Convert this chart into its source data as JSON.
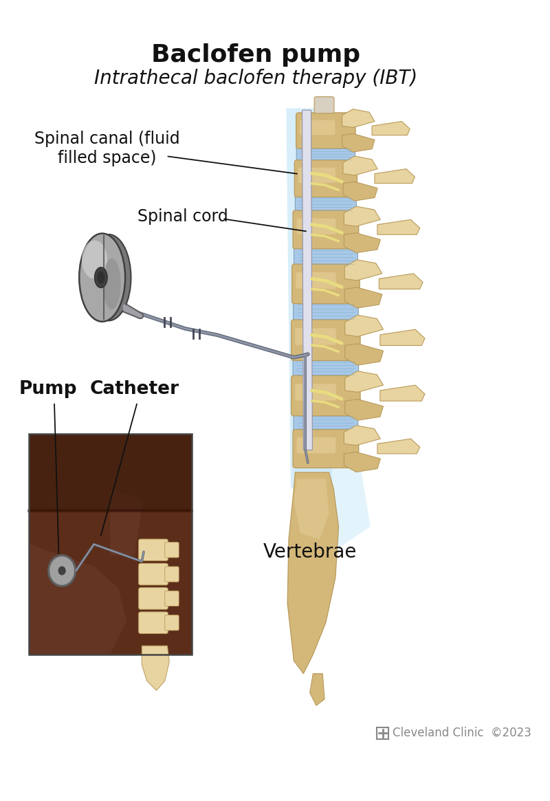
{
  "title": "Baclofen pump",
  "subtitle": "Intrathecal baclofen therapy (IBT)",
  "title_fontsize": 26,
  "subtitle_fontsize": 20,
  "title_color": "#111111",
  "subtitle_color": "#111111",
  "bg_color": "#ffffff",
  "label_fontsize": 17,
  "copyright_text": "Cleveland Clinic  ©2023",
  "copyright_color": "#888888",
  "copyright_fontsize": 12,
  "labels": {
    "spinal_canal": "Spinal canal (fluid\nfilled space)",
    "spinal_cord": "Spinal cord",
    "pump": "Pump",
    "catheter": "Catheter",
    "vertebrae": "Vertebrae"
  },
  "vertebra_color": "#D4B87A",
  "vertebra_light": "#E8D4A0",
  "vertebra_dark": "#B89A5A",
  "disc_color": "#A8C8E8",
  "disc_stripe": "#7AAAC8",
  "nerve_color": "#E8DC80",
  "nerve_dark": "#C8BC50",
  "cord_color": "#E0E0EC",
  "cord_edge": "#9090A8",
  "canal_glow": "#C8E8F8",
  "pump_mid": "#A0A0A0",
  "pump_light": "#C8C8C8",
  "pump_dark": "#606060",
  "pump_edge": "#333333",
  "catheter_color": "#606878",
  "catheter_light": "#9098A8",
  "skin_color": "#5C2E1A",
  "skin_mid": "#6B3A2A",
  "skin_light": "#7A4838",
  "annotation_color": "#111111",
  "anno_lw": 1.3
}
